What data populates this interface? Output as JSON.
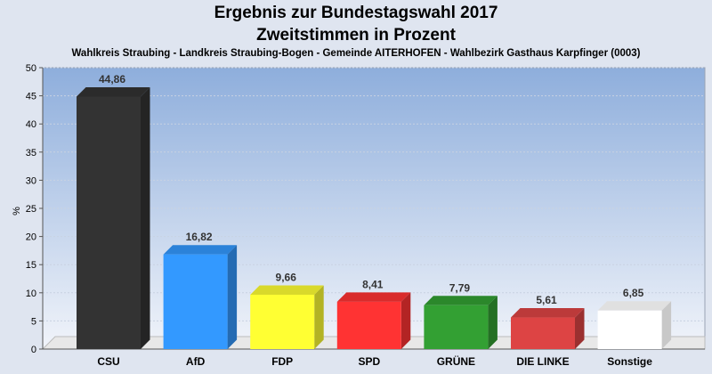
{
  "header": {
    "title_line1": "Ergebnis zur Bundestagswahl 2017",
    "title_line2": "Zweitstimmen in Prozent",
    "subtitle": "Wahlkreis Straubing - Landkreis Straubing-Bogen - Gemeinde AITERHOFEN - Wahlbezirk Gasthaus Karpfinger (0003)"
  },
  "chart_data": {
    "type": "bar",
    "title": "Ergebnis zur Bundestagswahl 2017",
    "subtitle": "Zweitstimmen in Prozent",
    "ylabel": "%",
    "xlabel": "",
    "ylim": [
      0,
      50
    ],
    "yticks": [
      0,
      5,
      10,
      15,
      20,
      25,
      30,
      35,
      40,
      45,
      50
    ],
    "grid": true,
    "categories": [
      "CSU",
      "AfD",
      "FDP",
      "SPD",
      "GRÜNE",
      "DIE LINKE",
      "Sonstige"
    ],
    "values": [
      44.86,
      16.82,
      9.66,
      8.41,
      7.79,
      5.61,
      6.85
    ],
    "value_labels": [
      "44,86",
      "16,82",
      "9,66",
      "8,41",
      "7,79",
      "5,61",
      "6,85"
    ],
    "colors": [
      "#333333",
      "#3399ff",
      "#ffff33",
      "#ff3333",
      "#33a033",
      "#dd4444",
      "#ffffff"
    ]
  }
}
